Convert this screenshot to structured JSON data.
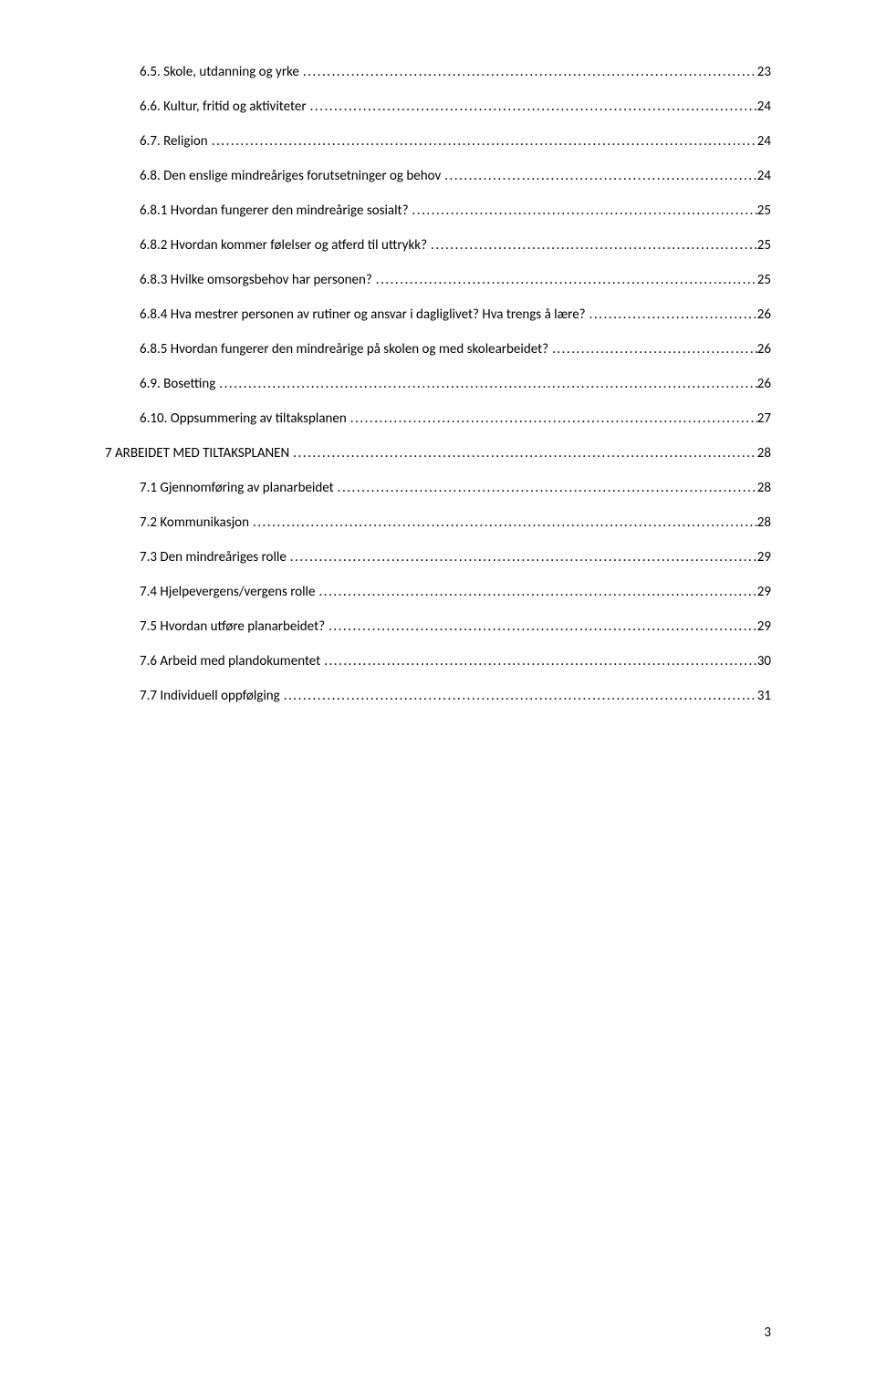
{
  "toc": [
    {
      "indent": 1,
      "label": "6.5. Skole, utdanning og yrke",
      "page": "23"
    },
    {
      "indent": 1,
      "label": "6.6. Kultur, fritid og aktiviteter",
      "page": "24"
    },
    {
      "indent": 1,
      "label": "6.7. Religion",
      "page": "24"
    },
    {
      "indent": 1,
      "label": "6.8. Den enslige mindreåriges forutsetninger og behov",
      "page": "24"
    },
    {
      "indent": 1,
      "label": "6.8.1 Hvordan fungerer den mindreårige sosialt?",
      "page": "25"
    },
    {
      "indent": 1,
      "label": "6.8.2 Hvordan kommer følelser og atferd til uttrykk?",
      "page": "25"
    },
    {
      "indent": 1,
      "label": "6.8.3 Hvilke omsorgsbehov har personen?",
      "page": "25"
    },
    {
      "indent": 1,
      "label": "6.8.4 Hva mestrer personen av rutiner og ansvar i dagliglivet? Hva trengs å lære?",
      "page": "26"
    },
    {
      "indent": 1,
      "label": "6.8.5 Hvordan fungerer den mindreårige på skolen og med skolearbeidet?",
      "page": "26"
    },
    {
      "indent": 1,
      "label": "6.9. Bosetting",
      "page": "26"
    },
    {
      "indent": 1,
      "label": "6.10. Oppsummering av tiltaksplanen",
      "page": "27"
    },
    {
      "indent": 0,
      "label": "7 ARBEIDET MED TILTAKSPLANEN",
      "page": "28"
    },
    {
      "indent": 1,
      "label": "7.1 Gjennomføring av planarbeidet",
      "page": "28"
    },
    {
      "indent": 1,
      "label": "7.2 Kommunikasjon",
      "page": "28"
    },
    {
      "indent": 1,
      "label": "7.3 Den mindreåriges rolle",
      "page": "29"
    },
    {
      "indent": 1,
      "label": "7.4 Hjelpevergens/vergens rolle",
      "page": "29"
    },
    {
      "indent": 1,
      "label": "7.5 Hvordan utføre planarbeidet?",
      "page": "29"
    },
    {
      "indent": 1,
      "label": "7.6 Arbeid med plandokumentet",
      "page": "30"
    },
    {
      "indent": 1,
      "label": "7.7 Individuell oppfølging",
      "page": "31"
    }
  ],
  "pageNumber": "3"
}
